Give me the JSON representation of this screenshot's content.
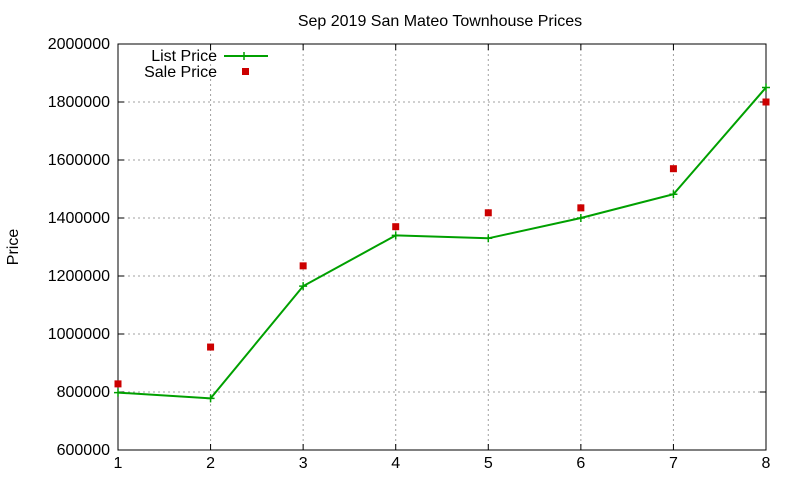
{
  "chart_data": {
    "type": "line",
    "title": "Sep 2019 San Mateo Townhouse Prices",
    "xlabel": "",
    "ylabel": "Price",
    "x": [
      1,
      2,
      3,
      4,
      5,
      6,
      7,
      8
    ],
    "xlim": [
      1,
      8
    ],
    "ylim": [
      600000,
      2000000
    ],
    "yticks": [
      600000,
      800000,
      1000000,
      1200000,
      1400000,
      1600000,
      1800000,
      2000000
    ],
    "xticks": [
      1,
      2,
      3,
      4,
      5,
      6,
      7,
      8
    ],
    "grid": true,
    "legend_position": "top-left",
    "series": [
      {
        "name": "List Price",
        "style": "line-with-plus-markers",
        "color": "#00a000",
        "values": [
          798000,
          778000,
          1165000,
          1340000,
          1330000,
          1400000,
          1482000,
          1850000
        ]
      },
      {
        "name": "Sale Price",
        "style": "square-markers",
        "color": "#cc0000",
        "values": [
          828000,
          955000,
          1235000,
          1370000,
          1418000,
          1435000,
          1570000,
          1800000
        ]
      }
    ]
  }
}
